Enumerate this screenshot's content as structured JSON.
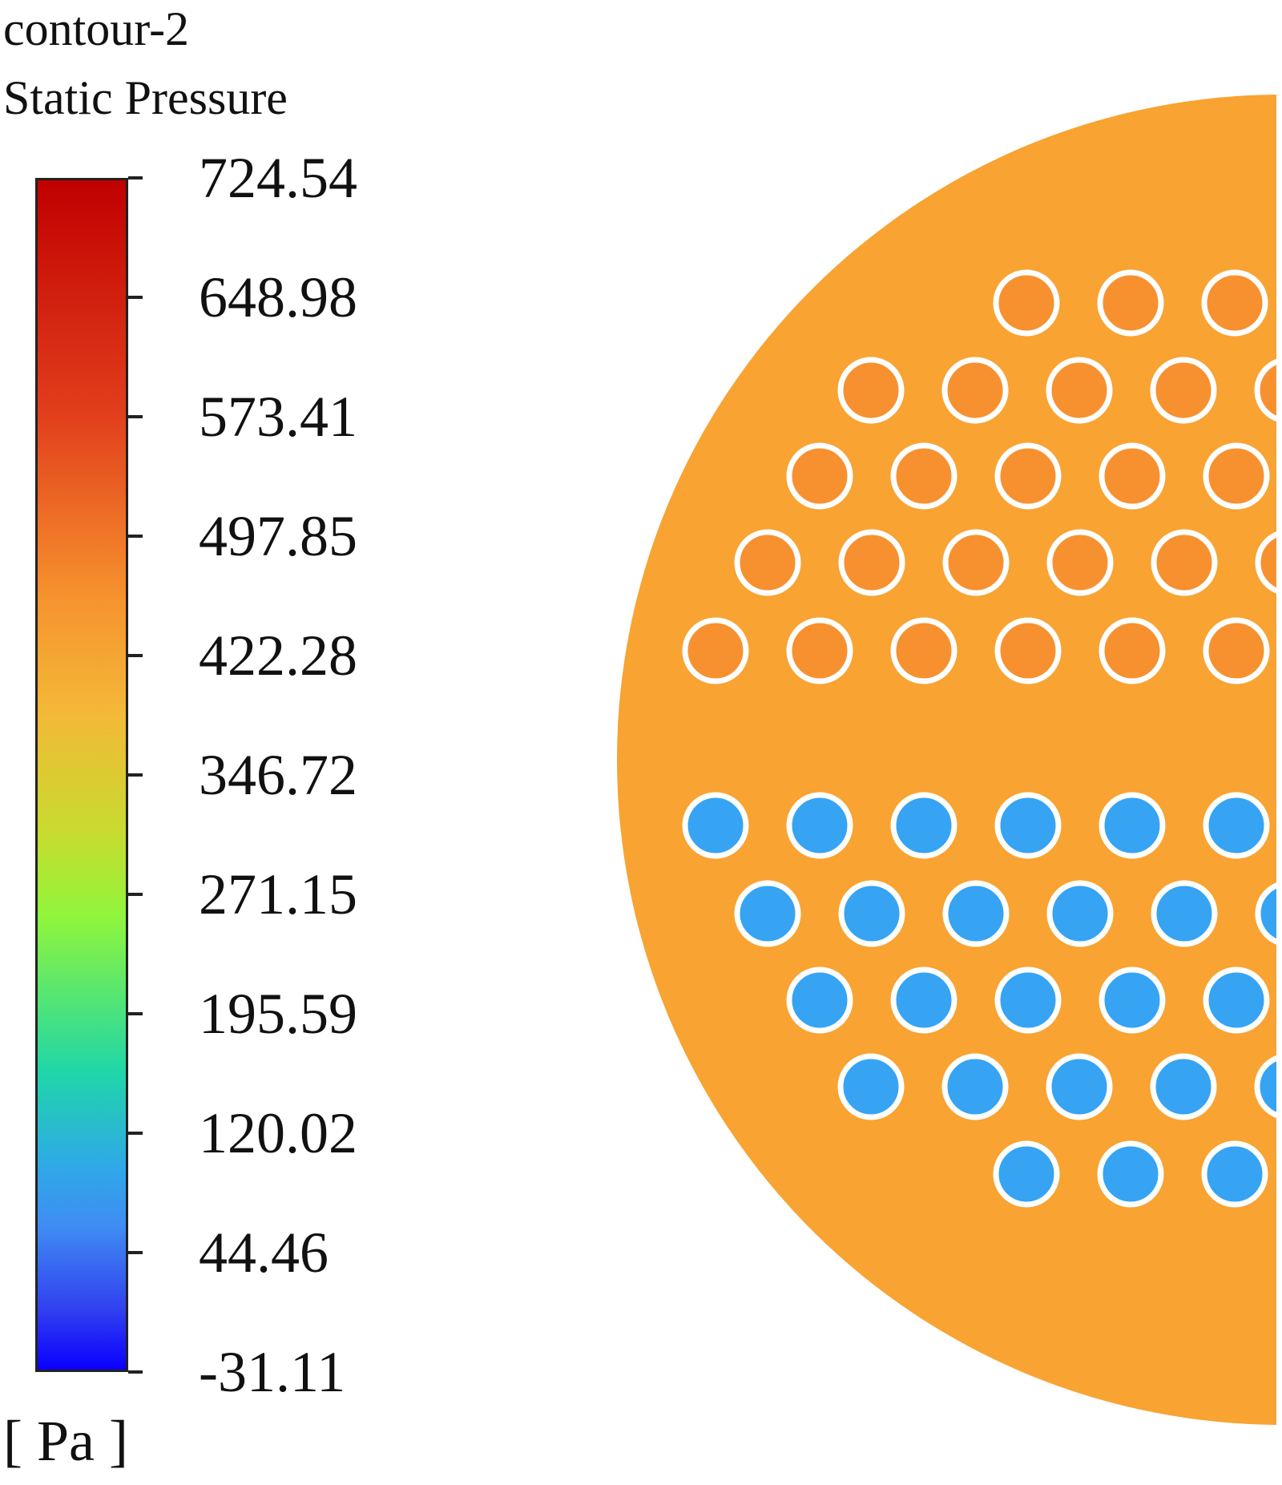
{
  "legend": {
    "contour_name": "contour-2",
    "variable": "Static Pressure",
    "units": "[ Pa ]",
    "ticks": [
      "724.54",
      "648.98",
      "573.41",
      "497.85",
      "422.28",
      "346.72",
      "271.15",
      "195.59",
      "120.02",
      "44.46",
      "-31.11"
    ],
    "min": -31.11,
    "max": 724.54
  },
  "field": {
    "shell_pressure_color": "#f8a332",
    "upper_tube_color": "#f79130",
    "lower_tube_color": "#36a4f2",
    "tube_outline_color": "#ffffff",
    "upper_tube_rows": [
      3,
      5,
      5,
      6,
      6
    ],
    "lower_tube_rows": [
      6,
      6,
      5,
      5,
      3
    ]
  }
}
